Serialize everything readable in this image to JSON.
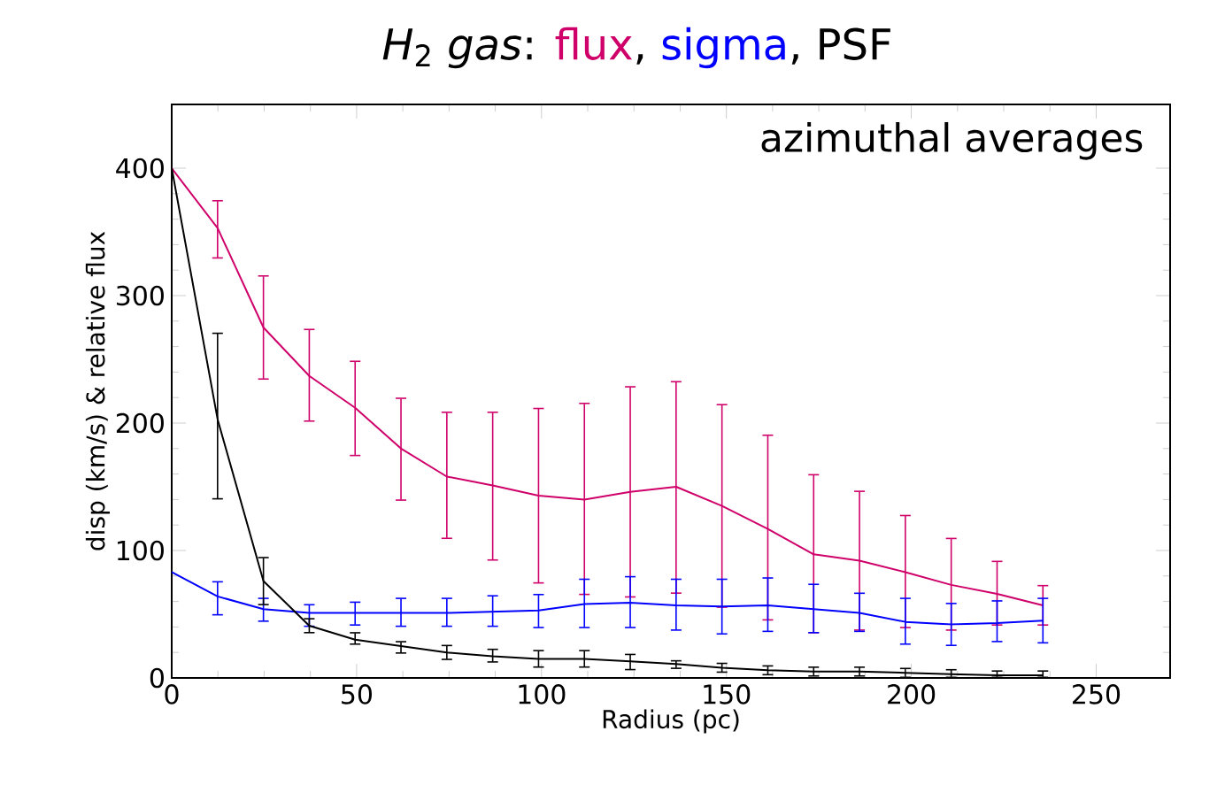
{
  "chart_data": {
    "type": "line",
    "title": "*H*$_{2}$ *gas*:",
    "annotations": [
      "azimuthal averages",
      ",",
      ","
    ],
    "xlabel": "Radius (pc)",
    "ylabel": "disp (km/s) & relative flux",
    "xlim": [
      0,
      270
    ],
    "ylim": [
      0,
      450
    ],
    "xticks": [
      0,
      50,
      100,
      150,
      200,
      250
    ],
    "yticks": [
      0,
      100,
      200,
      300,
      400
    ],
    "grid": false,
    "legend": "top",
    "x": [
      0,
      12.4,
      24.8,
      37.2,
      49.6,
      62,
      74.4,
      86.8,
      99.2,
      111.6,
      124,
      136.4,
      148.8,
      161.2,
      173.6,
      186,
      198.4,
      210.8,
      223.2,
      235.6
    ],
    "series": [
      {
        "name": "flux",
        "color": "#d0006a",
        "values": [
          400,
          353,
          275,
          237,
          212,
          180,
          158,
          151,
          143,
          140,
          146,
          150,
          135,
          117,
          97,
          92,
          83,
          73,
          66,
          57
        ],
        "errors": [
          null,
          [
            329,
            375
          ],
          [
            234,
            316
          ],
          [
            201,
            274
          ],
          [
            174,
            249
          ],
          [
            139,
            220
          ],
          [
            109,
            209
          ],
          [
            92,
            209
          ],
          [
            74,
            212
          ],
          [
            65,
            216
          ],
          [
            63,
            229
          ],
          [
            66,
            233
          ],
          [
            55,
            215
          ],
          [
            45,
            191
          ],
          [
            35,
            160
          ],
          [
            37,
            147
          ],
          [
            39,
            128
          ],
          [
            37,
            110
          ],
          [
            41,
            92
          ],
          [
            41,
            73
          ]
        ]
      },
      {
        "name": "sigma",
        "color": "#0000ff",
        "values": [
          83,
          64,
          54,
          51,
          51,
          51,
          51,
          52,
          53,
          58,
          59,
          57,
          56,
          57,
          54,
          51,
          44,
          42,
          43,
          45
        ],
        "errors": [
          null,
          [
            49,
            76
          ],
          [
            44,
            63
          ],
          [
            40,
            58
          ],
          [
            41,
            60
          ],
          [
            40,
            63
          ],
          [
            40,
            63
          ],
          [
            40,
            65
          ],
          [
            39,
            66
          ],
          [
            39,
            78
          ],
          [
            39,
            80
          ],
          [
            37,
            78
          ],
          [
            34,
            78
          ],
          [
            36,
            79
          ],
          [
            35,
            74
          ],
          [
            36,
            67
          ],
          [
            26,
            63
          ],
          [
            25,
            59
          ],
          [
            28,
            61
          ],
          [
            27,
            63
          ]
        ]
      },
      {
        "name": "PSF",
        "color": "#000000",
        "values": [
          400,
          203,
          76,
          41,
          30,
          25,
          20,
          17,
          15,
          15,
          13,
          11,
          8,
          6,
          5,
          5,
          4,
          3,
          2,
          2
        ],
        "errors": [
          null,
          [
            140,
            271
          ],
          [
            57,
            95
          ],
          [
            35,
            47
          ],
          [
            26,
            36
          ],
          [
            19,
            29
          ],
          [
            14,
            26
          ],
          [
            12,
            23
          ],
          [
            8,
            22
          ],
          [
            8,
            22
          ],
          [
            6,
            19
          ],
          [
            7,
            14
          ],
          [
            4,
            12
          ],
          [
            2,
            10
          ],
          [
            1,
            9
          ],
          [
            1,
            9
          ],
          [
            0,
            8
          ],
          [
            0,
            7
          ],
          [
            0,
            6
          ],
          [
            0,
            6
          ]
        ]
      }
    ]
  }
}
